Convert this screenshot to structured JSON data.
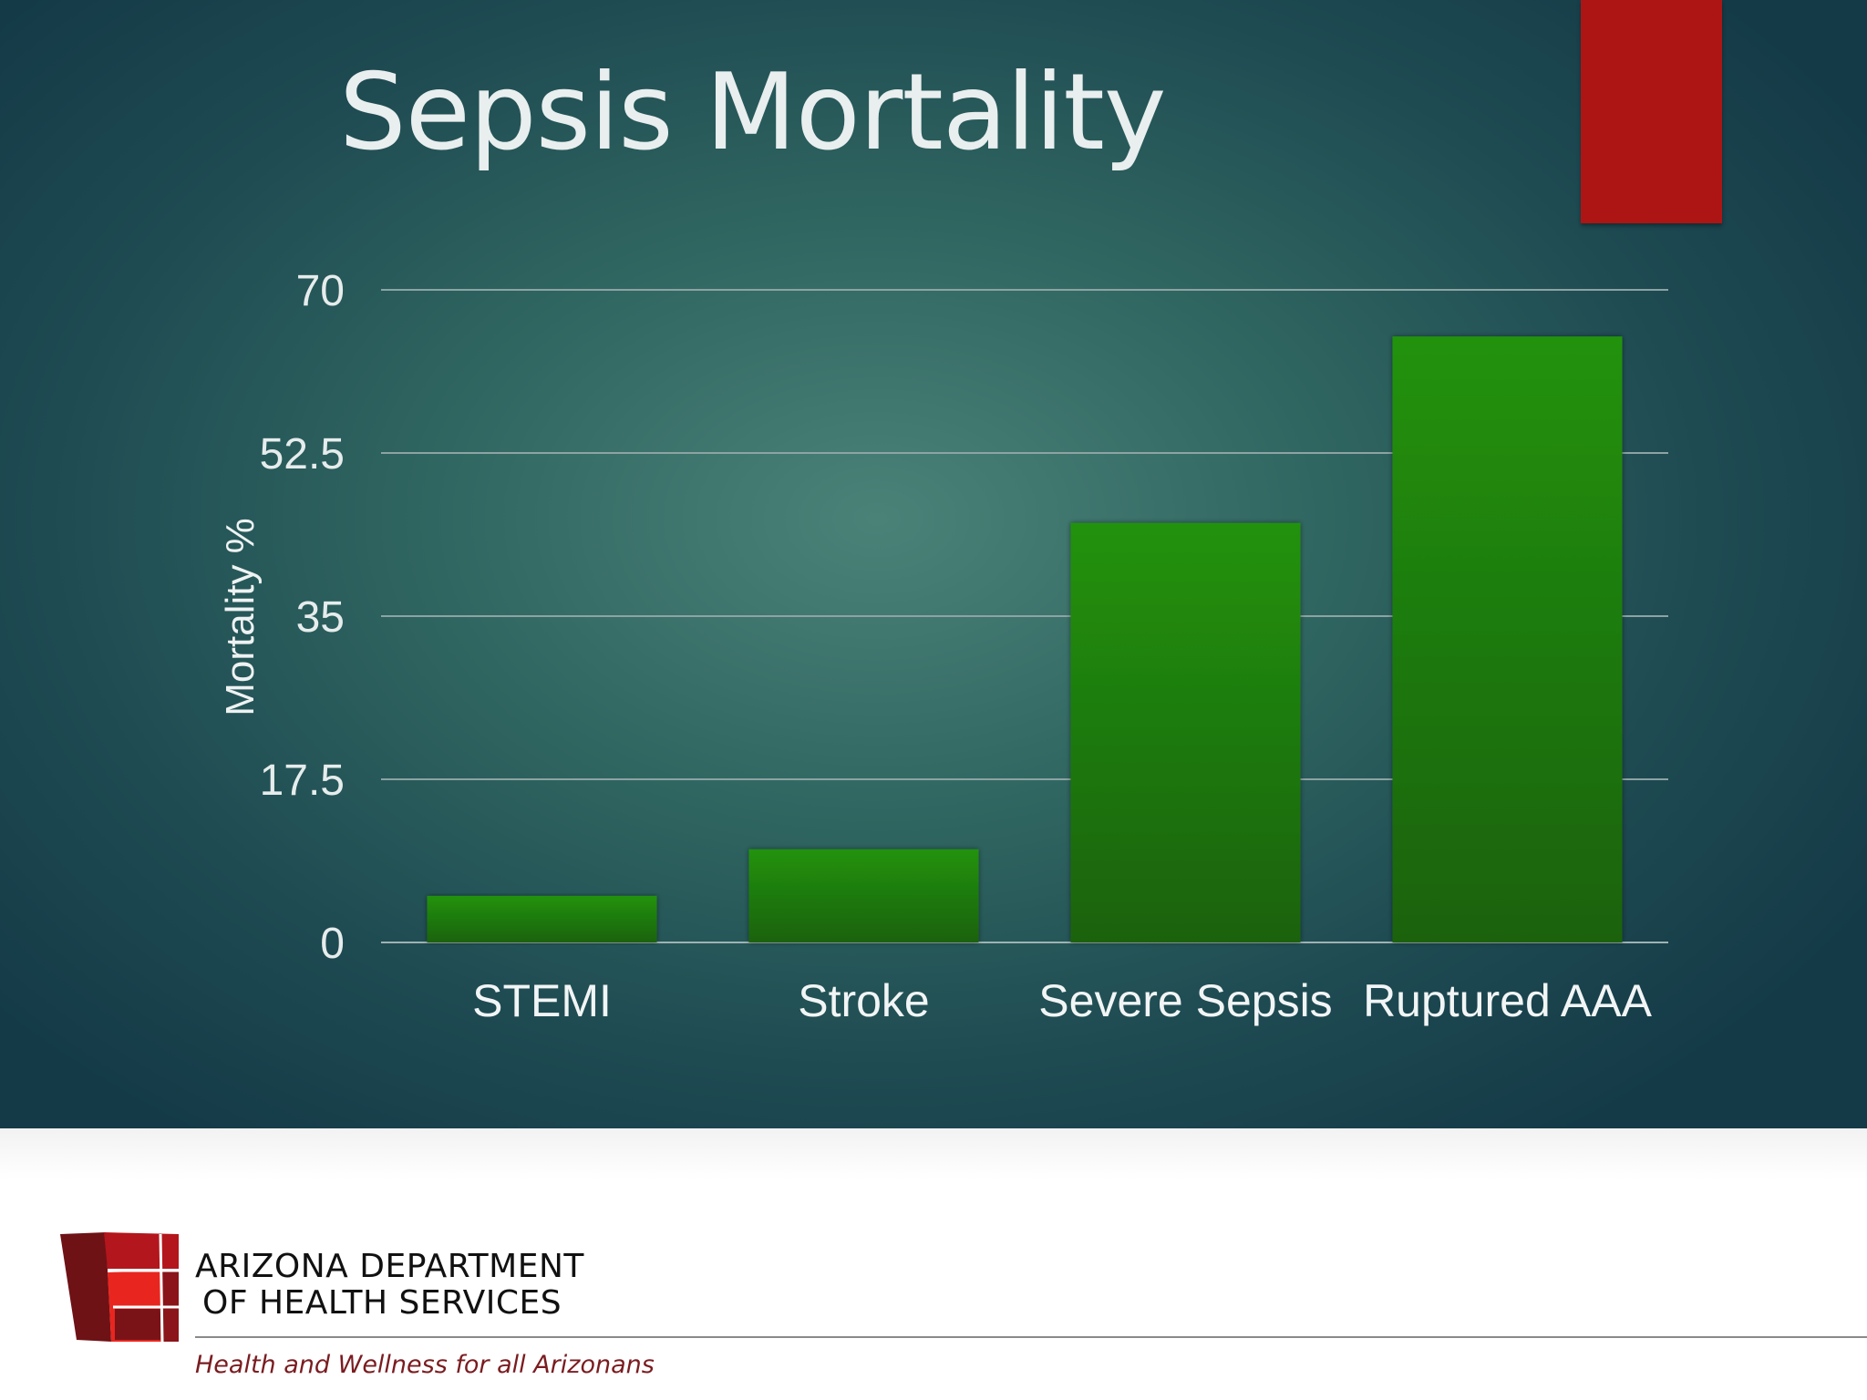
{
  "slide": {
    "title": "Sepsis Mortality",
    "accent_color": "#ad1515"
  },
  "chart_data": {
    "type": "bar",
    "title": "",
    "xlabel": "",
    "ylabel": "Mortality %",
    "categories": [
      "STEMI",
      "Stroke",
      "Severe Sepsis",
      "Ruptured AAA"
    ],
    "values": [
      5,
      10,
      45,
      65
    ],
    "ylim": [
      0,
      70
    ],
    "yticks": [
      "0",
      "17.5",
      "35",
      "52.5",
      "70"
    ],
    "grid": true,
    "legend": "none",
    "bar_color": "#1f8a12"
  },
  "footer": {
    "org_line1": "ARIZONA DEPARTMENT",
    "org_line2": "OF HEALTH SERVICES",
    "tagline": "Health and Wellness for all Arizonans",
    "logo_icon": "adhs-logo-icon"
  }
}
